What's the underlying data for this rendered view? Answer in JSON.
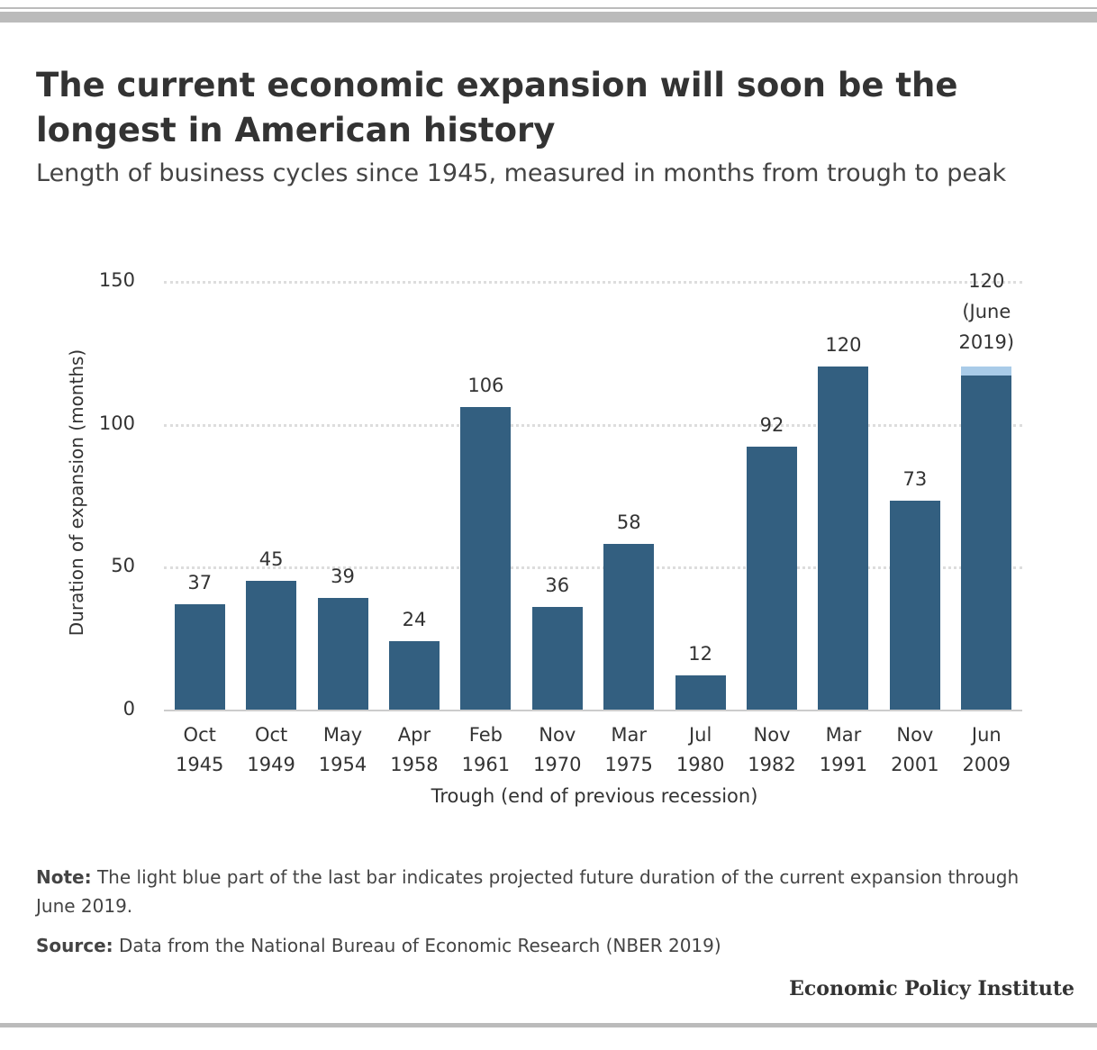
{
  "chart_data": {
    "type": "bar",
    "title": "The current economic expansion will soon be the longest in American history",
    "subtitle": "Length of business cycles since 1945, measured in months from trough to peak",
    "x_label": "Trough (end of previous recession)",
    "y_label": "Duration of expansion (months)",
    "categories": [
      "Oct 1945",
      "Oct 1949",
      "May 1954",
      "Apr 1958",
      "Feb 1961",
      "Nov 1970",
      "Mar 1975",
      "Jul 1980",
      "Nov 1982",
      "Mar 1991",
      "Nov 2001",
      "Jun 2009"
    ],
    "series": [
      {
        "color": "#335f80",
        "values": [
          37,
          45,
          39,
          24,
          106,
          36,
          58,
          12,
          92,
          120,
          73,
          null
        ],
        "labeled": true
      },
      {
        "color": "#335f80",
        "values": [
          null,
          null,
          null,
          null,
          null,
          null,
          null,
          null,
          null,
          null,
          null,
          117
        ]
      },
      {
        "color": "#a9cbe8",
        "values": [
          null,
          null,
          null,
          null,
          null,
          null,
          null,
          null,
          null,
          null,
          null,
          3
        ]
      }
    ],
    "annotation": "120 (June 2019)",
    "ylim": [
      0,
      150
    ],
    "yticks": [
      0,
      50,
      100,
      150
    ],
    "grid": true,
    "note_label": "Note:",
    "note": "The light blue part of the last bar indicates projected future duration of the current expansion through June 2019.",
    "source_label": "Source:",
    "source": "Data from the National Bureau of Economic Research (NBER 2019)",
    "brand": "Economic Policy Institute"
  }
}
